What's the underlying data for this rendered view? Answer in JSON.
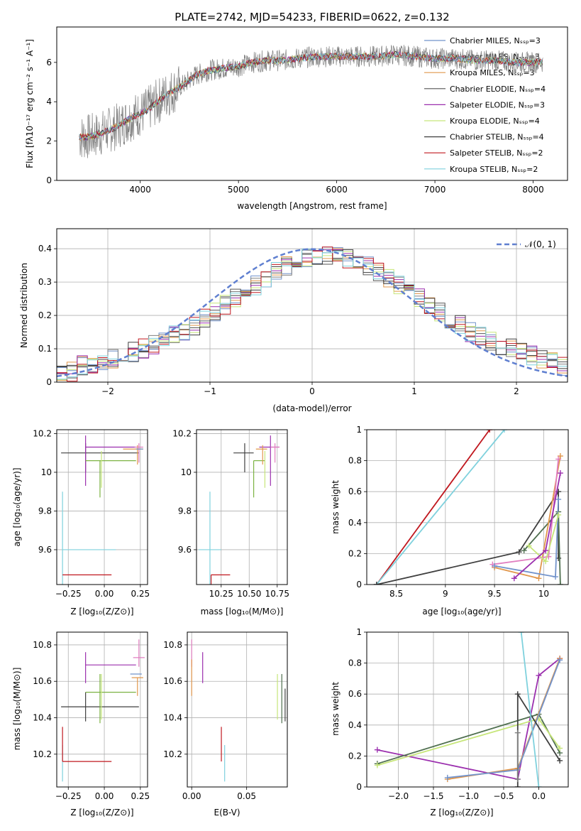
{
  "figure": {
    "title": "PLATE=2742, MJD=54233, FIBERID=0622, z=0.132",
    "colors": [
      "#7293cb",
      "#808080",
      "#e1974c",
      "#555555",
      "#9b2fae",
      "#c7e67a",
      "#3f3f3f",
      "#c0181f",
      "#7fd1dd",
      "#e17fc0",
      "#7cb342",
      "#4f6f4f"
    ]
  },
  "chart_data": [
    {
      "id": "spectrum",
      "type": "line",
      "title": "PLATE=2742, MJD=54233, FIBERID=0622, z=0.132",
      "xlabel": "wavelength [Angstrom, rest frame]",
      "ylabel": "Flux [fλ10⁻¹⁷ erg cm⁻² s⁻¹ A⁻¹]",
      "xlim": [
        3150,
        8350
      ],
      "ylim": [
        0,
        7.8
      ],
      "xticks": [
        4000,
        5000,
        6000,
        7000,
        8000
      ],
      "yticks": [
        0,
        2,
        4,
        6
      ],
      "grid": false,
      "legend_position": "top-right",
      "observed": {
        "color": "#808080",
        "x": [
          3380,
          3450,
          3550,
          3650,
          3750,
          3850,
          3950,
          4050,
          4150,
          4250,
          4350,
          4450,
          4550,
          4700,
          4850,
          5000,
          5150,
          5300,
          5450,
          5600,
          5800,
          6000,
          6200,
          6400,
          6600,
          6800,
          7000,
          7200,
          7400,
          7600,
          7800,
          8000,
          8100
        ],
        "y": [
          2.2,
          2.2,
          2.3,
          2.5,
          2.7,
          3.0,
          3.3,
          3.5,
          3.9,
          4.3,
          4.6,
          4.9,
          5.3,
          5.6,
          5.7,
          5.8,
          6.0,
          6.1,
          6.1,
          6.2,
          6.3,
          6.3,
          6.3,
          6.3,
          6.4,
          6.3,
          6.2,
          6.2,
          6.1,
          6.1,
          6.0,
          6.0,
          6.0
        ]
      },
      "models": [
        {
          "name": "Chabrier MILES, Nₛₛₚ=3",
          "color": "#7293cb"
        },
        {
          "name": "Salpeter MILES, Nₛₛₚ=3",
          "color": "#808080"
        },
        {
          "name": "Kroupa MILES, Nₛₛₚ=3",
          "color": "#e1974c"
        },
        {
          "name": "Chabrier ELODIE, Nₛₛₚ=4",
          "color": "#555555"
        },
        {
          "name": "Salpeter ELODIE, Nₛₛₚ=3",
          "color": "#9b2fae"
        },
        {
          "name": "Kroupa ELODIE, Nₛₛₚ=4",
          "color": "#c7e67a"
        },
        {
          "name": "Chabrier STELIB, Nₛₛₚ=4",
          "color": "#3f3f3f"
        },
        {
          "name": "Salpeter STELIB, Nₛₛₚ=2",
          "color": "#c0181f"
        },
        {
          "name": "Kroupa STELIB, Nₛₛₚ=2",
          "color": "#7fd1dd"
        }
      ]
    },
    {
      "id": "residuals",
      "type": "line",
      "xlabel": "(data-model)/error",
      "ylabel": "Normed distribution",
      "xlim": [
        -2.5,
        2.5
      ],
      "ylim": [
        0,
        0.46
      ],
      "xticks": [
        -2,
        -1,
        0,
        1,
        2
      ],
      "yticks": [
        0.0,
        0.1,
        0.2,
        0.3,
        0.4
      ],
      "grid": true,
      "legend_position": "top-right",
      "reference": {
        "name": "𝒩(0, 1)",
        "color": "#5f7fd0",
        "style": "dashed"
      },
      "bin_edges_start": -2.5,
      "bin_width": 0.1,
      "histogram_envelope": [
        0.03,
        0.03,
        0.05,
        0.05,
        0.06,
        0.07,
        0.08,
        0.09,
        0.1,
        0.11,
        0.13,
        0.14,
        0.15,
        0.17,
        0.19,
        0.21,
        0.23,
        0.25,
        0.27,
        0.29,
        0.31,
        0.33,
        0.35,
        0.36,
        0.37,
        0.38,
        0.38,
        0.38,
        0.37,
        0.36,
        0.35,
        0.33,
        0.31,
        0.29,
        0.27,
        0.25,
        0.23,
        0.21,
        0.19,
        0.17,
        0.15,
        0.14,
        0.12,
        0.11,
        0.1,
        0.09,
        0.08,
        0.07,
        0.06,
        0.05
      ]
    },
    {
      "id": "age-vs-Z",
      "type": "scatter",
      "xlabel": "Z [log₁₀(Z/Z⊙)]",
      "ylabel": "age  [log₁₀(age/yr)]",
      "xlim": [
        -0.33,
        0.3
      ],
      "ylim": [
        9.42,
        10.22
      ],
      "xticks": [
        -0.25,
        0.0,
        0.25
      ],
      "xticklabels": [
        "−0.25",
        "0.00",
        "0.25"
      ],
      "yticks": [
        9.6,
        9.8,
        10.0,
        10.2
      ],
      "grid": true,
      "points": [
        {
          "color": "#7fd1dd",
          "x": -0.29,
          "y": 9.6,
          "xerr": [
            0.0,
            0.37
          ],
          "yerr": [
            0.3,
            0.3
          ]
        },
        {
          "color": "#c0181f",
          "x": -0.29,
          "y": 9.47,
          "xerr": [
            0.0,
            0.34
          ],
          "yerr": [
            0.0,
            0.0
          ]
        },
        {
          "color": "#3f3f3f",
          "x": -0.13,
          "y": 10.1,
          "xerr": [
            0.17,
            0.37
          ],
          "yerr": [
            0.1,
            0.05
          ]
        },
        {
          "color": "#9b2fae",
          "x": -0.13,
          "y": 10.13,
          "xerr": [
            0.0,
            0.35
          ],
          "yerr": [
            0.2,
            0.06
          ]
        },
        {
          "color": "#7cb342",
          "x": -0.03,
          "y": 10.06,
          "xerr": [
            0.1,
            0.25
          ],
          "yerr": [
            0.19,
            0.0
          ]
        },
        {
          "color": "#c7e67a",
          "x": -0.02,
          "y": 10.06,
          "xerr": [
            0.0,
            0.0
          ],
          "yerr": [
            0.14,
            0.05
          ]
        },
        {
          "color": "#e1974c",
          "x": 0.23,
          "y": 10.12,
          "xerr": [
            0.1,
            0.04
          ],
          "yerr": [
            0.08,
            0.02
          ]
        },
        {
          "color": "#e17fc0",
          "x": 0.24,
          "y": 10.13,
          "xerr": [
            0.03,
            0.03
          ],
          "yerr": [
            0.08,
            0.02
          ]
        },
        {
          "color": "#7293cb",
          "x": 0.22,
          "y": 10.12,
          "xerr": [
            0.0,
            0.05
          ],
          "yerr": [
            0.0,
            0.0
          ]
        }
      ]
    },
    {
      "id": "age-vs-mass",
      "type": "scatter",
      "xlabel": "mass [log₁₀(M/M⊙)]",
      "ylabel": "",
      "xlim": [
        10.03,
        10.84
      ],
      "ylim": [
        9.42,
        10.22
      ],
      "xticks": [
        10.25,
        10.5,
        10.75
      ],
      "xticklabels": [
        "10.25",
        "10.50",
        "10.75"
      ],
      "yticks": [
        9.6,
        9.8,
        10.0,
        10.2
      ],
      "grid": true,
      "points": [
        {
          "color": "#7fd1dd",
          "x": 10.15,
          "y": 9.6,
          "xerr": [
            0.1,
            0.1
          ],
          "yerr": [
            0.3,
            0.3
          ]
        },
        {
          "color": "#c0181f",
          "x": 10.16,
          "y": 9.47,
          "xerr": [
            0.0,
            0.17
          ],
          "yerr": [
            0.32,
            0.0
          ]
        },
        {
          "color": "#3f3f3f",
          "x": 10.46,
          "y": 10.1,
          "xerr": [
            0.1,
            0.08
          ],
          "yerr": [
            0.1,
            0.05
          ]
        },
        {
          "color": "#7cb342",
          "x": 10.54,
          "y": 10.06,
          "xerr": [
            0.0,
            0.1
          ],
          "yerr": [
            0.19,
            0.0
          ]
        },
        {
          "color": "#c7e67a",
          "x": 10.64,
          "y": 10.06,
          "xerr": [
            0.0,
            0.0
          ],
          "yerr": [
            0.14,
            0.05
          ]
        },
        {
          "color": "#9b2fae",
          "x": 10.69,
          "y": 10.13,
          "xerr": [
            0.1,
            0.08
          ],
          "yerr": [
            0.2,
            0.06
          ]
        },
        {
          "color": "#e1974c",
          "x": 10.62,
          "y": 10.12,
          "xerr": [
            0.06,
            0.04
          ],
          "yerr": [
            0.08,
            0.02
          ]
        },
        {
          "color": "#e17fc0",
          "x": 10.73,
          "y": 10.13,
          "xerr": [
            0.04,
            0.04
          ],
          "yerr": [
            0.08,
            0.02
          ]
        }
      ]
    },
    {
      "id": "mass-weight-vs-age",
      "type": "line",
      "xlabel": "age  [log₁₀(age/yr)]",
      "ylabel": "mass weight",
      "xlim": [
        8.2,
        10.25
      ],
      "ylim": [
        0.0,
        1.0
      ],
      "xticks": [
        8.5,
        9.0,
        9.5,
        10.0
      ],
      "yticks": [
        0.0,
        0.2,
        0.4,
        0.6,
        0.8,
        1.0
      ],
      "grid": true,
      "series": [
        {
          "color": "#c0181f",
          "x": [
            8.3,
            9.45
          ],
          "y": [
            0.0,
            1.0
          ]
        },
        {
          "color": "#7fd1dd",
          "x": [
            8.3,
            9.6
          ],
          "y": [
            0.0,
            1.0
          ]
        },
        {
          "color": "#3f3f3f",
          "x": [
            8.3,
            9.75,
            10.15,
            10.15
          ],
          "y": [
            0.0,
            0.21,
            0.6,
            0.17
          ]
        },
        {
          "color": "#4f6f4f",
          "x": [
            9.8,
            10.15,
            10.17
          ],
          "y": [
            0.22,
            0.47,
            0.0
          ]
        },
        {
          "color": "#e1974c",
          "x": [
            9.5,
            9.95,
            10.17
          ],
          "y": [
            0.11,
            0.04,
            0.83
          ]
        },
        {
          "color": "#e17fc0",
          "x": [
            9.48,
            10.05,
            10.15
          ],
          "y": [
            0.13,
            0.18,
            0.81
          ]
        },
        {
          "color": "#7293cb",
          "x": [
            9.5,
            10.12,
            10.15
          ],
          "y": [
            0.12,
            0.05,
            0.55
          ]
        },
        {
          "color": "#c7e67a",
          "x": [
            9.85,
            10.02,
            10.15
          ],
          "y": [
            0.25,
            0.15,
            0.45
          ]
        },
        {
          "color": "#9b2fae",
          "x": [
            9.7,
            10.02,
            10.17
          ],
          "y": [
            0.04,
            0.22,
            0.72
          ]
        }
      ]
    },
    {
      "id": "mass-vs-Z",
      "type": "scatter",
      "xlabel": "Z [log₁₀(Z/Z⊙)]",
      "ylabel": "mass [log₁₀(M/M⊙)]",
      "xlim": [
        -0.33,
        0.3
      ],
      "ylim": [
        10.02,
        10.87
      ],
      "xticks": [
        -0.25,
        0.0,
        0.25
      ],
      "xticklabels": [
        "−0.25",
        "0.00",
        "0.25"
      ],
      "yticks": [
        10.2,
        10.4,
        10.6,
        10.8
      ],
      "grid": true,
      "points": [
        {
          "color": "#7fd1dd",
          "x": -0.29,
          "y": 10.15,
          "xerr": [
            0.0,
            0.0
          ],
          "yerr": [
            0.1,
            0.1
          ]
        },
        {
          "color": "#c0181f",
          "x": -0.29,
          "y": 10.16,
          "xerr": [
            0.0,
            0.34
          ],
          "yerr": [
            0.0,
            0.19
          ]
        },
        {
          "color": "#3f3f3f",
          "x": -0.13,
          "y": 10.46,
          "xerr": [
            0.17,
            0.37
          ],
          "yerr": [
            0.08,
            0.08
          ]
        },
        {
          "color": "#9b2fae",
          "x": -0.13,
          "y": 10.69,
          "xerr": [
            0.0,
            0.35
          ],
          "yerr": [
            0.1,
            0.07
          ]
        },
        {
          "color": "#7cb342",
          "x": -0.03,
          "y": 10.54,
          "xerr": [
            0.1,
            0.25
          ],
          "yerr": [
            0.17,
            0.1
          ]
        },
        {
          "color": "#c7e67a",
          "x": -0.02,
          "y": 10.54,
          "xerr": [
            0.0,
            0.0
          ],
          "yerr": [
            0.15,
            0.1
          ]
        },
        {
          "color": "#e1974c",
          "x": 0.23,
          "y": 10.62,
          "xerr": [
            0.04,
            0.04
          ],
          "yerr": [
            0.1,
            0.0
          ]
        },
        {
          "color": "#e17fc0",
          "x": 0.24,
          "y": 10.73,
          "xerr": [
            0.04,
            0.04
          ],
          "yerr": [
            0.05,
            0.1
          ]
        },
        {
          "color": "#7293cb",
          "x": 0.22,
          "y": 10.64,
          "xerr": [
            0.04,
            0.04
          ],
          "yerr": [
            0.0,
            0.0
          ]
        }
      ]
    },
    {
      "id": "mass-vs-ebv",
      "type": "scatter",
      "xlabel": "E(B-V)",
      "ylabel": "",
      "xlim": [
        -0.004,
        0.087
      ],
      "ylim": [
        10.02,
        10.87
      ],
      "xticks": [
        0.0,
        0.05
      ],
      "xticklabels": [
        "0.00",
        "0.05"
      ],
      "yticks": [
        10.2,
        10.4,
        10.6,
        10.8
      ],
      "grid": true,
      "points": [
        {
          "color": "#e17fc0",
          "x": 0.0,
          "y": 10.73,
          "xerr": [
            0.0,
            0.0
          ],
          "yerr": [
            0.05,
            0.1
          ]
        },
        {
          "color": "#e1974c",
          "x": 0.0,
          "y": 10.62,
          "xerr": [
            0.0,
            0.0
          ],
          "yerr": [
            0.1,
            0.1
          ]
        },
        {
          "color": "#9b2fae",
          "x": 0.01,
          "y": 10.69,
          "xerr": [
            0.0,
            0.0
          ],
          "yerr": [
            0.1,
            0.07
          ]
        },
        {
          "color": "#c0181f",
          "x": 0.027,
          "y": 10.16,
          "xerr": [
            0.0,
            0.0
          ],
          "yerr": [
            0.0,
            0.19
          ]
        },
        {
          "color": "#7fd1dd",
          "x": 0.03,
          "y": 10.15,
          "xerr": [
            0.0,
            0.0
          ],
          "yerr": [
            0.1,
            0.1
          ]
        },
        {
          "color": "#c7e67a",
          "x": 0.078,
          "y": 10.54,
          "xerr": [
            0.0,
            0.0
          ],
          "yerr": [
            0.15,
            0.1
          ]
        },
        {
          "color": "#4f6f4f",
          "x": 0.082,
          "y": 10.54,
          "xerr": [
            0.0,
            0.0
          ],
          "yerr": [
            0.17,
            0.1
          ]
        },
        {
          "color": "#3f3f3f",
          "x": 0.085,
          "y": 10.46,
          "xerr": [
            0.0,
            0.0
          ],
          "yerr": [
            0.08,
            0.1
          ]
        }
      ]
    },
    {
      "id": "mass-weight-vs-Z",
      "type": "line",
      "xlabel": "Z [log₁₀(Z/Z⊙)]",
      "ylabel": "mass weight",
      "xlim": [
        -2.45,
        0.42
      ],
      "ylim": [
        0.0,
        1.0
      ],
      "xticks": [
        -2.0,
        -1.5,
        -1.0,
        -0.5,
        0.0
      ],
      "xticklabels": [
        "−2.0",
        "−1.5",
        "−1.0",
        "−0.5",
        "0.0"
      ],
      "yticks": [
        0.0,
        0.2,
        0.4,
        0.6,
        0.8,
        1.0
      ],
      "grid": true,
      "series": [
        {
          "color": "#9b2fae",
          "x": [
            -2.3,
            -0.3,
            0.0,
            0.3
          ],
          "y": [
            0.24,
            0.05,
            0.72,
            0.83
          ]
        },
        {
          "color": "#4f6f4f",
          "x": [
            -2.3,
            0.0,
            0.3
          ],
          "y": [
            0.15,
            0.47,
            0.22
          ]
        },
        {
          "color": "#c7e67a",
          "x": [
            -2.3,
            0.0,
            0.3
          ],
          "y": [
            0.14,
            0.44,
            0.25
          ]
        },
        {
          "color": "#e1974c",
          "x": [
            -1.3,
            -0.3,
            0.3
          ],
          "y": [
            0.05,
            0.12,
            0.83
          ]
        },
        {
          "color": "#7293cb",
          "x": [
            -1.3,
            -0.3,
            0.3
          ],
          "y": [
            0.06,
            0.11,
            0.82
          ]
        },
        {
          "color": "#3f3f3f",
          "x": [
            -0.3,
            -0.3,
            0.3
          ],
          "y": [
            0.0,
            0.6,
            0.17
          ]
        },
        {
          "color": "#7fd1dd",
          "x": [
            -0.25,
            0.0
          ],
          "y": [
            1.0,
            0.0
          ]
        },
        {
          "color": "#808080",
          "x": [
            -0.3,
            -0.3
          ],
          "y": [
            0.05,
            0.35
          ]
        }
      ]
    }
  ]
}
